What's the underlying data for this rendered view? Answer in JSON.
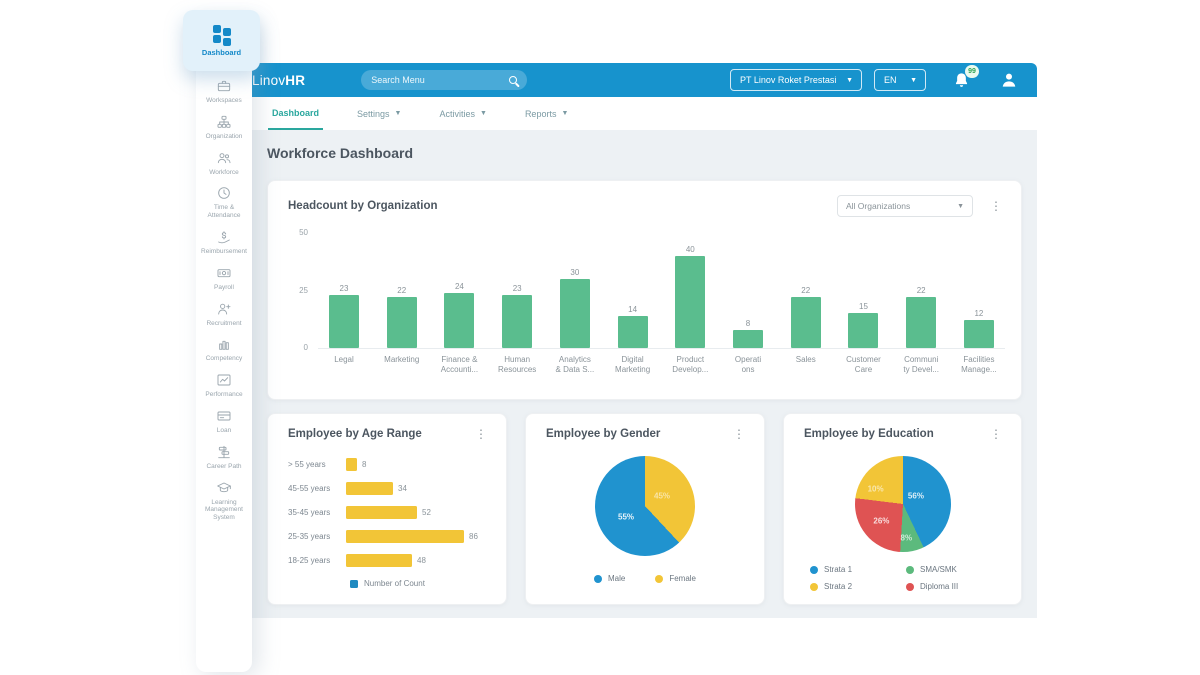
{
  "header": {
    "logo_regular": "Linov",
    "logo_bold": "HR",
    "search_placeholder": "Search Menu",
    "company": "PT Linov Roket Prestasi",
    "language": "EN",
    "notification_badge": "99"
  },
  "sidebar": {
    "active_item": "Dashboard",
    "items": [
      {
        "id": "workspaces",
        "label": "Workspaces"
      },
      {
        "id": "organization",
        "label": "Organization"
      },
      {
        "id": "workforce",
        "label": "Workforce"
      },
      {
        "id": "time-attendance",
        "label": "Time &\nAttendance"
      },
      {
        "id": "reimbursement",
        "label": "Reimbursement"
      },
      {
        "id": "payroll",
        "label": "Payroll"
      },
      {
        "id": "recruitment",
        "label": "Recruitment"
      },
      {
        "id": "competency",
        "label": "Competency"
      },
      {
        "id": "performance",
        "label": "Performance"
      },
      {
        "id": "loan",
        "label": "Loan"
      },
      {
        "id": "career-path",
        "label": "Career Path"
      },
      {
        "id": "lms",
        "label": "Learning\nManagement\nSystem"
      }
    ]
  },
  "tabs": [
    {
      "label": "Dashboard",
      "active": true,
      "dropdown": false
    },
    {
      "label": "Settings",
      "active": false,
      "dropdown": true
    },
    {
      "label": "Activities",
      "active": false,
      "dropdown": true
    },
    {
      "label": "Reports",
      "active": false,
      "dropdown": true
    }
  ],
  "page_title": "Workforce Dashboard",
  "colors": {
    "header_blue": "#1793cd",
    "accent_teal": "#2aa79e",
    "bar_green": "#5abd8e",
    "bar_yellow": "#f2c537",
    "pie_blue": "#2093cf",
    "pie_yellow": "#f2c537",
    "pie_red": "#df5353",
    "pie_green": "#5cba7d",
    "legend_count_blue": "#1f8ac0"
  },
  "chart_data": [
    {
      "type": "bar",
      "title": "Headcount by Organization",
      "filter_value": "All Organizations",
      "categories": [
        "Legal",
        "Marketing",
        "Finance &\nAccounti...",
        "Human\nResources",
        "Analytics\n& Data S...",
        "Digital\nMarketing",
        "Product\nDevelop...",
        "Operati\nons",
        "Sales",
        "Customer\nCare",
        "Communi\nty Devel...",
        "Facilities\nManage..."
      ],
      "values": [
        23,
        22,
        24,
        23,
        30,
        14,
        40,
        8,
        22,
        15,
        22,
        12
      ],
      "ylim": [
        0,
        50
      ],
      "yticks": [
        50,
        25,
        0
      ],
      "bar_color": "#5abd8e",
      "grid": false,
      "legend_position": "none"
    },
    {
      "type": "bar",
      "orientation": "horizontal",
      "title": "Employee by Age Range",
      "categories": [
        "> 55 years",
        "45-55 years",
        "35-45 years",
        "25-35 years",
        "18-25 years"
      ],
      "values": [
        8,
        34,
        52,
        86,
        48
      ],
      "bar_color": "#f2c537",
      "legend": [
        {
          "label": "Number of Count",
          "color": "#1f8ac0"
        }
      ],
      "legend_position": "bottom"
    },
    {
      "type": "pie",
      "title": "Employee by Gender",
      "start_angle": -25,
      "draw_order": [
        "Female",
        "Male"
      ],
      "legend_layout": "flex",
      "legend_order": [
        0,
        1
      ],
      "slices": [
        {
          "label": "Male",
          "value": 55,
          "color": "#2093cf",
          "pct_text": "55%",
          "pct_pos": [
            31,
            61
          ],
          "pct_opacity": 0.9
        },
        {
          "label": "Female",
          "value": 45,
          "color": "#f2c537",
          "pct_text": "45%",
          "pct_pos": [
            67,
            40
          ],
          "pct_opacity": 0.55
        }
      ]
    },
    {
      "type": "pie",
      "title": "Employee by Education",
      "start_angle": -47,
      "draw_order": [
        "Strata 1",
        "SMA/SMK",
        "Diploma III",
        "Strata 2"
      ],
      "legend_layout": "grid",
      "legend_order": [
        0,
        2,
        1,
        3
      ],
      "slices": [
        {
          "label": "Strata 1",
          "value": 56,
          "color": "#2093cf",
          "pct_text": "56%",
          "pct_pos": [
            64,
            42
          ],
          "pct_opacity": 0.85
        },
        {
          "label": "Strata 2",
          "value": 10,
          "color": "#f2c537",
          "pct_text": "10%",
          "pct_pos": [
            22,
            34
          ],
          "pct_opacity": 0.6
        },
        {
          "label": "SMA/SMK",
          "value": 8,
          "color": "#5cba7d",
          "pct_text": "8%",
          "pct_pos": [
            54,
            85
          ],
          "pct_opacity": 0.7
        },
        {
          "label": "Diploma III",
          "value": 26,
          "color": "#df5353",
          "pct_text": "26%",
          "pct_pos": [
            28,
            68
          ],
          "pct_opacity": 0.8
        }
      ]
    }
  ]
}
